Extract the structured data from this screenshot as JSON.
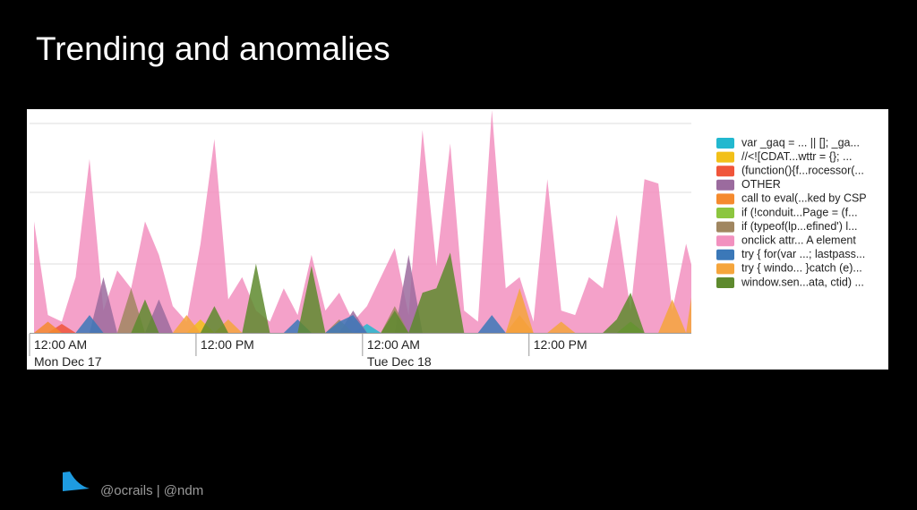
{
  "slide": {
    "title": "Trending and anomalies",
    "footer": "@ocrails | @ndm"
  },
  "chart_data": {
    "type": "area",
    "ylim": [
      0,
      100
    ],
    "categories": [
      "12:00 AM",
      null,
      null,
      null,
      null,
      null,
      null,
      null,
      null,
      null,
      null,
      null,
      "12:00 PM",
      null,
      null,
      null,
      null,
      null,
      null,
      null,
      null,
      null,
      null,
      null,
      "12:00 AM",
      null,
      null,
      null,
      null,
      null,
      null,
      null,
      null,
      null,
      null,
      null,
      "12:00 PM",
      null,
      null,
      null,
      null,
      null,
      null,
      null,
      null,
      null,
      null,
      null,
      null
    ],
    "category_dates": [
      "Mon Dec 17",
      null,
      null,
      null,
      null,
      null,
      null,
      null,
      null,
      null,
      null,
      null,
      null,
      null,
      null,
      null,
      null,
      null,
      null,
      null,
      null,
      null,
      null,
      null,
      "Tue Dec 18",
      null,
      null,
      null,
      null,
      null,
      null,
      null,
      null,
      null,
      null,
      null,
      null,
      null,
      null,
      null,
      null,
      null,
      null,
      null,
      null,
      null,
      null,
      null,
      null
    ],
    "series": [
      {
        "name": "var _gaq = ... || []; _ga...",
        "color": "#22b8cf",
        "values": [
          0,
          0,
          0,
          0,
          0,
          0,
          0,
          0,
          0,
          0,
          0,
          0,
          0,
          0,
          0,
          0,
          0,
          0,
          0,
          0,
          0,
          0,
          0,
          0,
          4,
          0,
          0,
          0,
          0,
          0,
          0,
          0,
          0,
          0,
          0,
          0,
          0,
          0,
          0,
          0,
          0,
          0,
          0,
          0,
          0,
          0,
          0,
          0,
          0
        ]
      },
      {
        "name": "//<![CDAT...wttr = {}; ...",
        "color": "#f2c018",
        "values": [
          0,
          0,
          0,
          0,
          0,
          0,
          0,
          0,
          0,
          0,
          0,
          0,
          6,
          0,
          0,
          0,
          0,
          0,
          0,
          0,
          0,
          0,
          0,
          0,
          0,
          0,
          0,
          0,
          0,
          0,
          0,
          0,
          0,
          0,
          0,
          0,
          0,
          0,
          0,
          0,
          0,
          0,
          0,
          0,
          0,
          0,
          0,
          0,
          0
        ]
      },
      {
        "name": "(function(){f...rocessor(...",
        "color": "#f0553a",
        "values": [
          0,
          0,
          4,
          0,
          0,
          0,
          0,
          0,
          0,
          0,
          0,
          0,
          0,
          0,
          0,
          0,
          0,
          0,
          0,
          0,
          0,
          0,
          0,
          0,
          0,
          0,
          0,
          0,
          0,
          0,
          0,
          0,
          0,
          0,
          0,
          0,
          0,
          0,
          0,
          0,
          0,
          0,
          0,
          0,
          0,
          0,
          0,
          0,
          0
        ]
      },
      {
        "name": "OTHER",
        "color": "#9b6b9e",
        "values": [
          0,
          0,
          0,
          0,
          0,
          25,
          0,
          0,
          0,
          15,
          0,
          0,
          0,
          0,
          0,
          0,
          0,
          0,
          0,
          0,
          0,
          0,
          0,
          10,
          0,
          0,
          0,
          35,
          0,
          0,
          0,
          0,
          0,
          0,
          0,
          0,
          0,
          0,
          0,
          0,
          0,
          0,
          0,
          0,
          0,
          0,
          0,
          0,
          0
        ]
      },
      {
        "name": "call to eval(...ked by CSP",
        "color": "#f58a2e",
        "values": [
          0,
          5,
          0,
          0,
          0,
          0,
          0,
          0,
          0,
          0,
          0,
          0,
          0,
          0,
          0,
          0,
          0,
          0,
          0,
          0,
          0,
          0,
          0,
          0,
          0,
          0,
          0,
          0,
          0,
          0,
          0,
          0,
          0,
          0,
          0,
          8,
          0,
          0,
          0,
          0,
          0,
          0,
          0,
          0,
          0,
          0,
          0,
          0,
          0
        ]
      },
      {
        "name": "if (!conduit...Page = (f...",
        "color": "#8cc63f",
        "values": [
          0,
          0,
          0,
          0,
          0,
          0,
          0,
          0,
          0,
          0,
          0,
          0,
          0,
          0,
          0,
          0,
          0,
          0,
          0,
          0,
          0,
          0,
          0,
          0,
          0,
          0,
          0,
          0,
          0,
          0,
          0,
          0,
          0,
          0,
          0,
          0,
          0,
          0,
          0,
          0,
          0,
          0,
          0,
          5,
          0,
          0,
          0,
          0,
          0
        ]
      },
      {
        "name": "if (typeof(lp...efined') l...",
        "color": "#a08660",
        "values": [
          0,
          0,
          0,
          0,
          0,
          0,
          0,
          20,
          0,
          0,
          0,
          0,
          0,
          0,
          0,
          0,
          0,
          0,
          0,
          0,
          0,
          0,
          6,
          0,
          0,
          0,
          12,
          0,
          0,
          0,
          0,
          0,
          0,
          0,
          0,
          0,
          0,
          0,
          0,
          0,
          0,
          0,
          0,
          0,
          0,
          0,
          0,
          0,
          0
        ]
      },
      {
        "name": "onclick attr... A element",
        "color": "#f291bf",
        "values": [
          50,
          8,
          5,
          25,
          78,
          10,
          28,
          20,
          50,
          35,
          12,
          5,
          40,
          87,
          15,
          25,
          10,
          5,
          20,
          8,
          35,
          10,
          18,
          5,
          12,
          25,
          38,
          8,
          91,
          30,
          85,
          10,
          5,
          100,
          20,
          25,
          5,
          69,
          10,
          8,
          25,
          20,
          53,
          10,
          69,
          67,
          10,
          40,
          15
        ]
      },
      {
        "name": "try { for(var ...; lastpass...",
        "color": "#3b78b8",
        "values": [
          0,
          0,
          0,
          0,
          8,
          0,
          0,
          0,
          0,
          0,
          0,
          0,
          0,
          0,
          0,
          0,
          0,
          0,
          0,
          6,
          0,
          0,
          5,
          8,
          0,
          0,
          0,
          0,
          0,
          0,
          0,
          0,
          0,
          8,
          0,
          0,
          0,
          0,
          0,
          0,
          0,
          0,
          0,
          0,
          0,
          0,
          0,
          0,
          0
        ]
      },
      {
        "name": "try { windo... }catch (e)...",
        "color": "#f5a53c",
        "values": [
          0,
          0,
          0,
          0,
          0,
          0,
          0,
          0,
          0,
          0,
          0,
          8,
          0,
          0,
          6,
          0,
          0,
          0,
          0,
          0,
          0,
          0,
          0,
          0,
          0,
          0,
          0,
          0,
          0,
          0,
          0,
          0,
          0,
          0,
          0,
          20,
          0,
          0,
          5,
          0,
          0,
          0,
          0,
          0,
          0,
          0,
          15,
          0,
          42
        ]
      },
      {
        "name": "window.sen...ata, ctid) ...",
        "color": "#5e8a2e",
        "values": [
          0,
          0,
          0,
          0,
          0,
          0,
          0,
          0,
          15,
          0,
          0,
          0,
          0,
          12,
          0,
          0,
          31,
          0,
          0,
          0,
          30,
          0,
          0,
          0,
          0,
          0,
          10,
          0,
          18,
          20,
          36,
          0,
          0,
          0,
          0,
          0,
          0,
          0,
          0,
          0,
          0,
          0,
          6,
          18,
          0,
          0,
          0,
          0,
          0
        ]
      }
    ]
  }
}
